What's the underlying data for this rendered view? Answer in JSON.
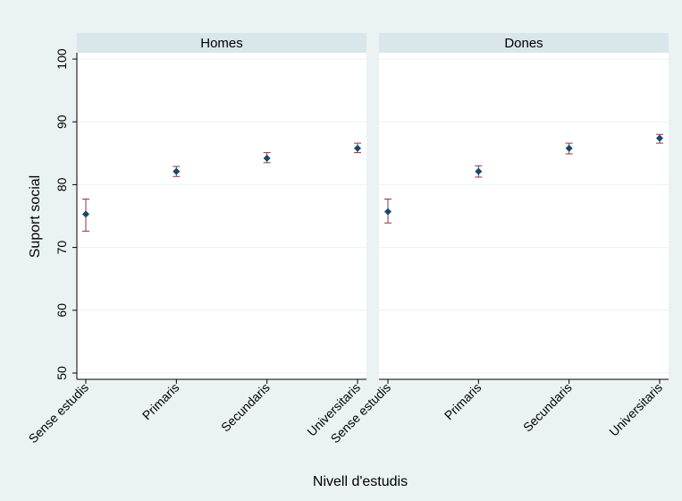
{
  "chart_data": {
    "type": "scatter",
    "subtype": "point-estimates-with-95ci-error-bars",
    "panels": [
      "Homes",
      "Dones"
    ],
    "categories": [
      "Sense estudis",
      "Primaris",
      "Secundaris",
      "Universitaris"
    ],
    "xlabel": "Nivell d'estudis",
    "ylabel": "Suport social",
    "ylim": [
      49,
      101
    ],
    "yticks": [
      50,
      60,
      70,
      80,
      90,
      100
    ],
    "grid": true,
    "legend": "none",
    "series": [
      {
        "panel": "Homes",
        "points": [
          {
            "category": "Sense estudis",
            "value": 75.3,
            "low": 72.6,
            "high": 77.7
          },
          {
            "category": "Primaris",
            "value": 82.1,
            "low": 81.3,
            "high": 82.9
          },
          {
            "category": "Secundaris",
            "value": 84.2,
            "low": 83.5,
            "high": 85.1
          },
          {
            "category": "Universitaris",
            "value": 85.8,
            "low": 85.1,
            "high": 86.6
          }
        ]
      },
      {
        "panel": "Dones",
        "points": [
          {
            "category": "Sense estudis",
            "value": 75.7,
            "low": 73.9,
            "high": 77.7
          },
          {
            "category": "Primaris",
            "value": 82.1,
            "low": 81.2,
            "high": 83.0
          },
          {
            "category": "Secundaris",
            "value": 85.8,
            "low": 84.9,
            "high": 86.6
          },
          {
            "category": "Universitaris",
            "value": 87.4,
            "low": 86.6,
            "high": 88.0
          }
        ]
      }
    ],
    "colors": {
      "background": "#eaf2f3",
      "plot_background": "#ffffff",
      "strip_background": "#d9e6eb",
      "gridline": "#eaf2f3",
      "marker": "#1a476f",
      "errorbar": "#90353b"
    }
  }
}
